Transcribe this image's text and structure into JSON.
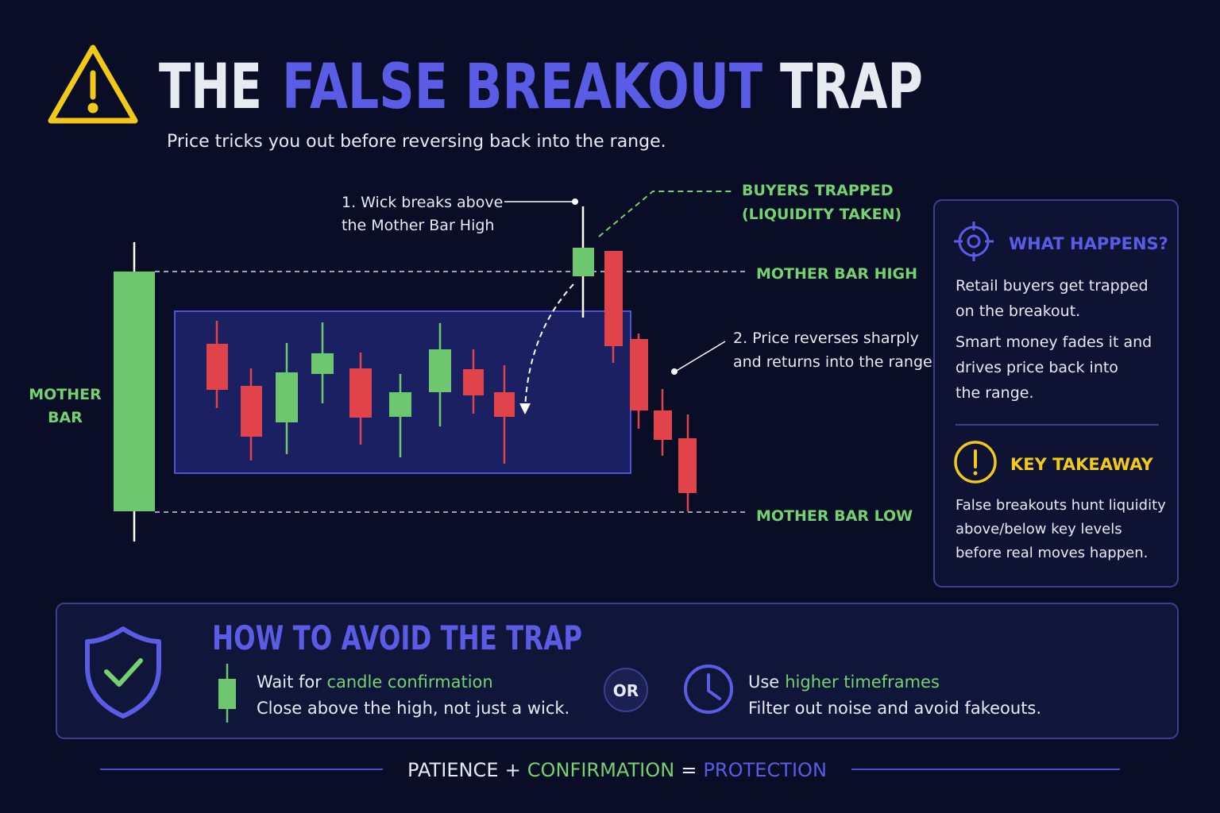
{
  "header": {
    "title": [
      "THE",
      "FALSE BREAKOUT",
      "TRAP"
    ],
    "subtitle": "Price tricks you out before reversing back into the range."
  },
  "annotations": {
    "wick": [
      "1. Wick breaks above",
      "the Mother Bar High"
    ],
    "trapped": [
      "BUYERS TRAPPED",
      "(LIQUIDITY TAKEN)"
    ],
    "reverse": [
      "2. Price reverses sharply",
      "and returns into the range"
    ],
    "mother_bar": [
      "MOTHER",
      "BAR"
    ],
    "high": "MOTHER BAR HIGH",
    "low": "MOTHER BAR LOW"
  },
  "panel": {
    "what": {
      "title": "WHAT HAPPENS?",
      "lines": [
        "Retail buyers get trapped",
        "on the breakout.",
        "Smart money fades it and",
        "drives price back into",
        "the range."
      ]
    },
    "takeaway": {
      "title": "KEY TAKEAWAY",
      "lines": [
        "False breakouts hunt liquidity",
        "above/below key levels",
        "before real moves happen."
      ]
    }
  },
  "avoid": {
    "title": "HOW TO AVOID THE TRAP",
    "tip1": {
      "lead": "Wait for",
      "highlight": "candle confirmation",
      "detail": "Close above the high, not just a wick."
    },
    "or": "OR",
    "tip2": {
      "lead": "Use",
      "highlight": "higher timeframes",
      "detail": "Filter out noise and avoid fakeouts."
    }
  },
  "footer": [
    "PATIENCE",
    "+",
    "CONFIRMATION",
    "=",
    "PROTECTION"
  ]
}
